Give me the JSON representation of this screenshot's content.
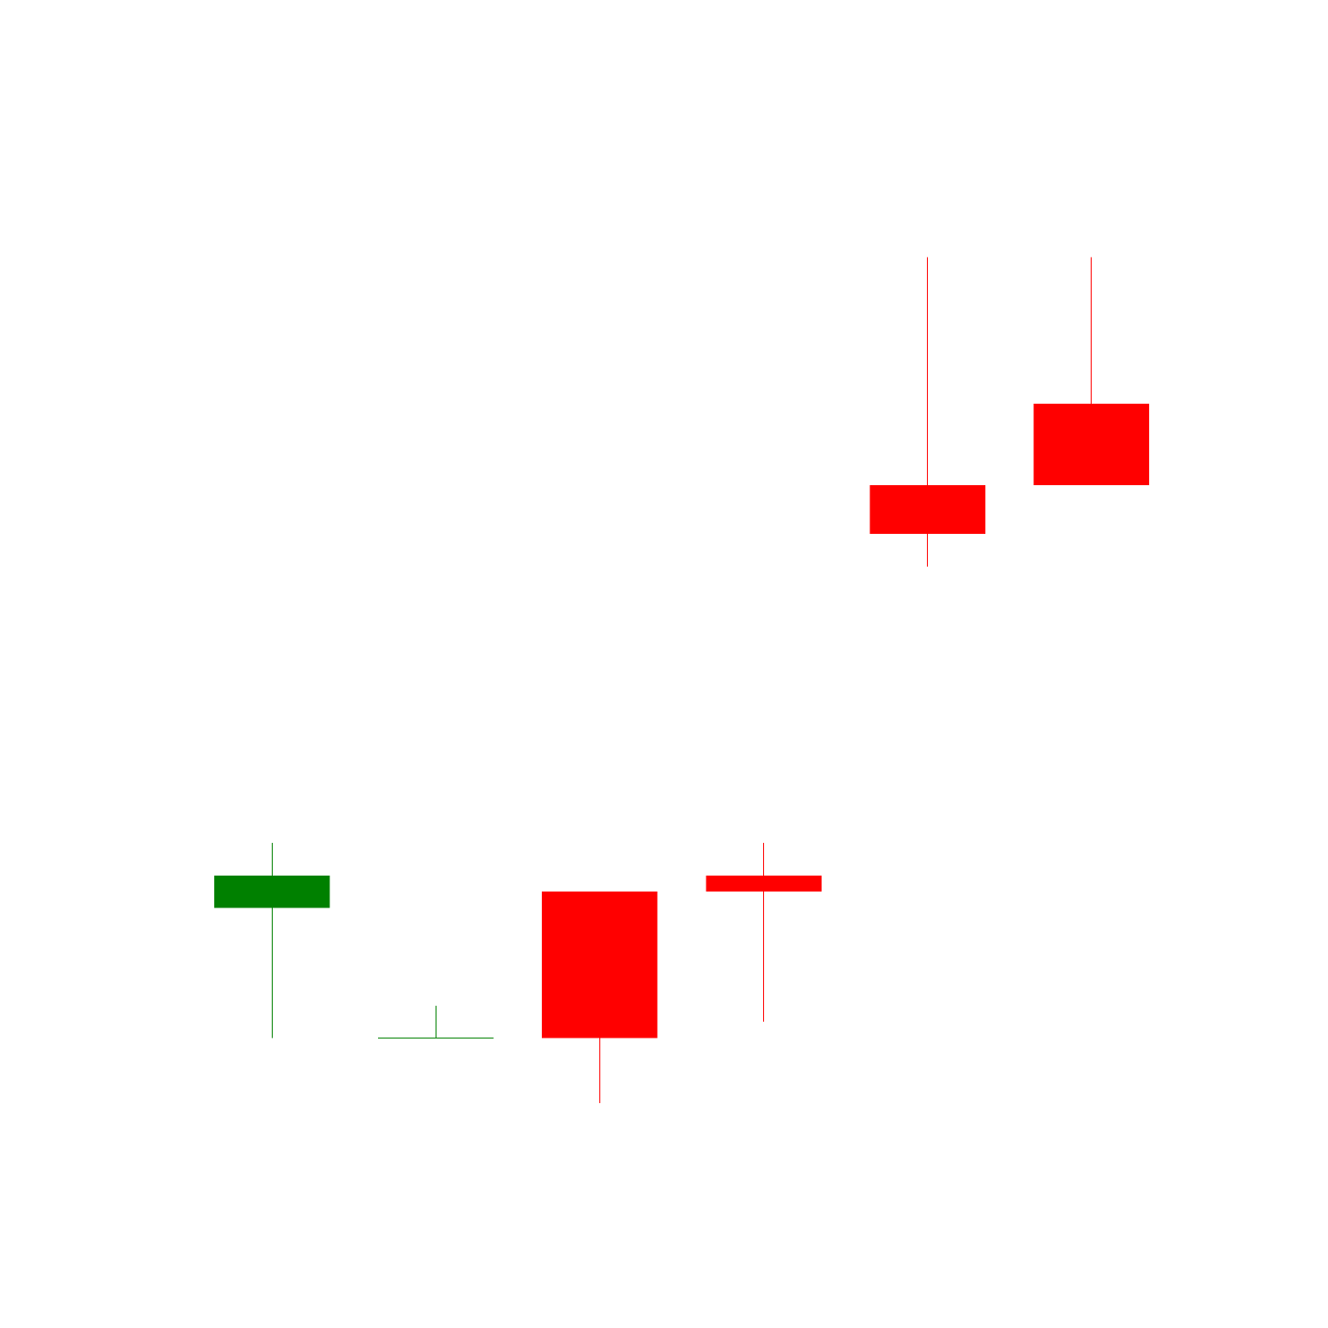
{
  "chart_data": {
    "type": "candlestick",
    "title": "",
    "xlabel": "",
    "ylabel": "",
    "grid": false,
    "legend": "none",
    "ylim": [
      -12,
      2
    ],
    "colors": {
      "up": "#008000",
      "down": "#ff0000"
    },
    "candles": [
      {
        "open": -8.0,
        "high": -7.2,
        "low": -9.6,
        "close": -7.6
      },
      {
        "open": -9.6,
        "high": -9.2,
        "low": -9.6,
        "close": -9.6
      },
      {
        "open": -7.8,
        "high": -7.8,
        "low": -10.4,
        "close": -9.6
      },
      {
        "open": -7.6,
        "high": -7.2,
        "low": -9.4,
        "close": -7.8
      },
      {
        "open": -2.8,
        "high": 0.0,
        "low": -3.8,
        "close": -3.4
      },
      {
        "open": -1.8,
        "high": 0.0,
        "low": -2.8,
        "close": -2.8
      }
    ]
  }
}
